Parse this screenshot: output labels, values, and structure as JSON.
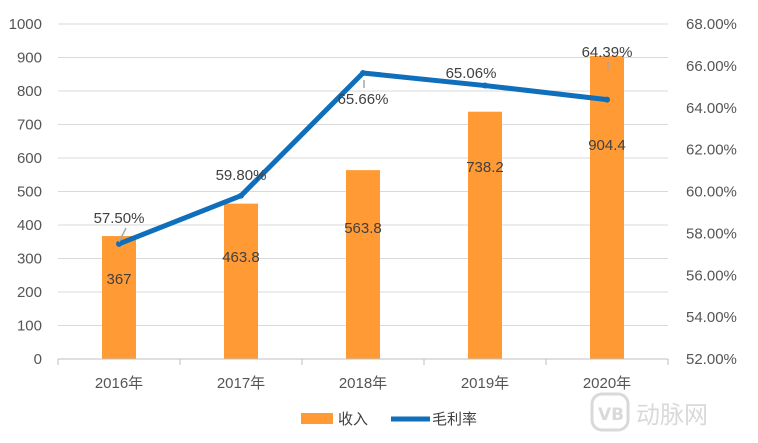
{
  "chart_data": {
    "type": "bar",
    "categories": [
      "2016年",
      "2017年",
      "2018年",
      "2019年",
      "2020年"
    ],
    "series": [
      {
        "name": "收入",
        "type": "bar",
        "axis": "left",
        "color": "#ff9a35",
        "values": [
          367,
          463.8,
          563.8,
          738.2,
          904.4
        ],
        "labels": [
          "367",
          "463.8",
          "563.8",
          "738.2",
          "904.4"
        ]
      },
      {
        "name": "毛利率",
        "type": "line",
        "axis": "right",
        "color": "#0f6fba",
        "values": [
          57.5,
          59.8,
          65.66,
          65.06,
          64.39
        ],
        "labels": [
          "57.50%",
          "59.80%",
          "65.66%",
          "65.06%",
          "64.39%"
        ]
      }
    ],
    "y_left": {
      "ylim": [
        0,
        1000
      ],
      "ticks": [
        "0",
        "100",
        "200",
        "300",
        "400",
        "500",
        "600",
        "700",
        "800",
        "900",
        "1000"
      ]
    },
    "y_right": {
      "ylim": [
        52,
        68
      ],
      "ticks": [
        "52.00%",
        "54.00%",
        "56.00%",
        "58.00%",
        "60.00%",
        "62.00%",
        "64.00%",
        "66.00%",
        "68.00%"
      ]
    },
    "grid": true,
    "legend_position": "bottom"
  },
  "watermark": {
    "text": "动脉网",
    "logo_text": "VB"
  }
}
